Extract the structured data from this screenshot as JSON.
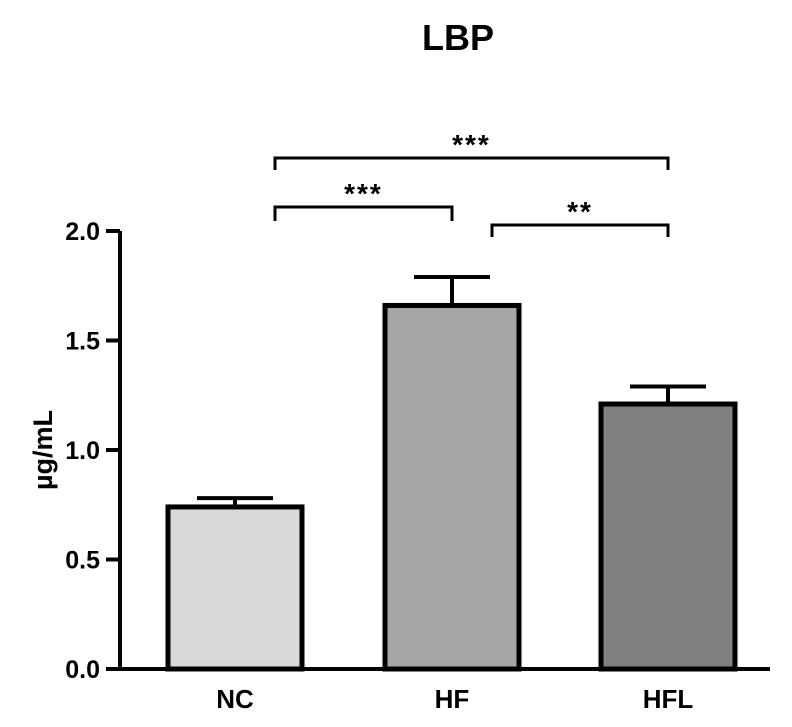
{
  "chart_data": {
    "type": "bar",
    "title": "LBP",
    "xlabel": "",
    "ylabel": "µg/mL",
    "ylim": [
      0,
      2.0
    ],
    "yticks": [
      "0.0",
      "0.5",
      "1.0",
      "1.5",
      "2.0"
    ],
    "ytick_values": [
      0,
      0.5,
      1.0,
      1.5,
      2.0
    ],
    "categories": [
      "NC",
      "HF",
      "HFL"
    ],
    "values": [
      0.74,
      1.66,
      1.21
    ],
    "errors": [
      0.04,
      0.13,
      0.08
    ],
    "bar_colors": [
      "#d9d9d9",
      "#a6a6a6",
      "#808080"
    ],
    "grid": false,
    "significance": [
      {
        "from": "NC",
        "to": "HF",
        "label": "***"
      },
      {
        "from": "HF",
        "to": "HFL",
        "label": "**"
      },
      {
        "from": "NC",
        "to": "HFL",
        "label": "***"
      }
    ]
  }
}
